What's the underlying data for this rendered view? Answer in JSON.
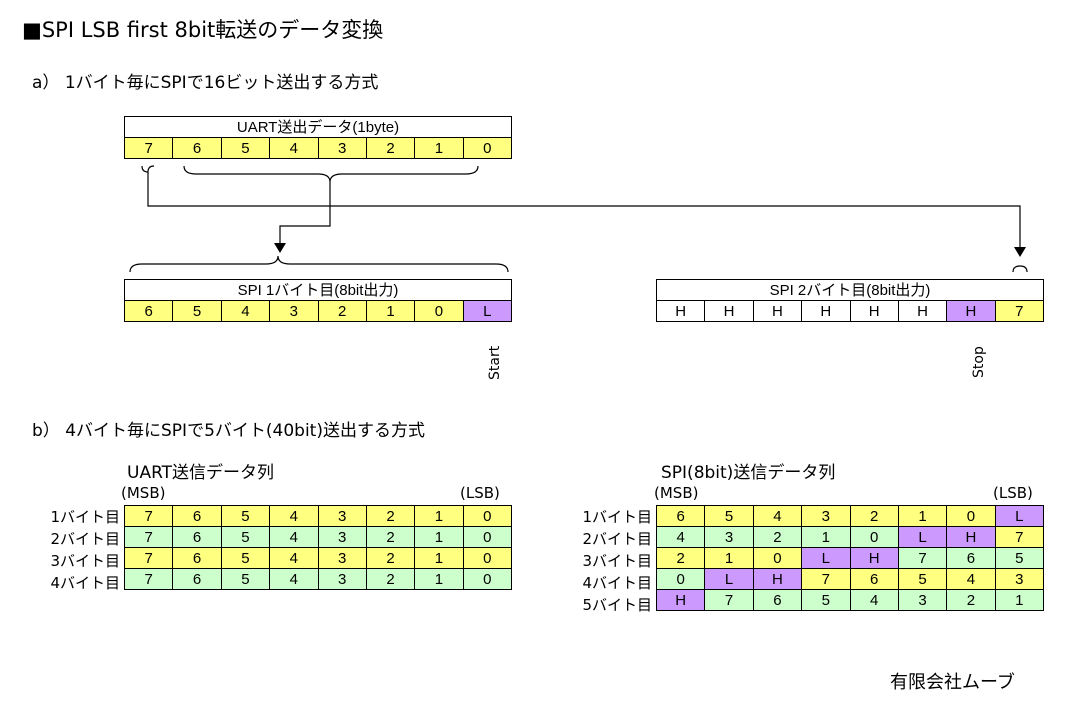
{
  "title": "■SPI LSB first 8bit転送のデータ変換",
  "section_a": {
    "heading": "a）  1バイト毎にSPIで16ビット送出する方式",
    "uart_caption": "UART送出データ(1byte)",
    "uart_cells": [
      "7",
      "6",
      "5",
      "4",
      "3",
      "2",
      "1",
      "0"
    ],
    "spi1_caption": "SPI 1バイト目(8bit出力)",
    "spi1_cells": [
      "6",
      "5",
      "4",
      "3",
      "2",
      "1",
      "0",
      "L"
    ],
    "spi2_caption": "SPI 2バイト目(8bit出力)",
    "spi2_cells": [
      "H",
      "H",
      "H",
      "H",
      "H",
      "H",
      "H",
      "7"
    ],
    "start_label": "Start",
    "stop_label": "Stop"
  },
  "section_b": {
    "heading": "b）  4バイト毎にSPIで5バイト(40bit)送出する方式",
    "uart_title": "UART送信データ列",
    "spi_title": "SPI(8bit)送信データ列",
    "msb": "(MSB)",
    "lsb": "(LSB)",
    "uart_row_labels": [
      "1バイト目",
      "2バイト目",
      "3バイト目",
      "4バイト目"
    ],
    "uart_rows": [
      [
        "7",
        "6",
        "5",
        "4",
        "3",
        "2",
        "1",
        "0"
      ],
      [
        "7",
        "6",
        "5",
        "4",
        "3",
        "2",
        "1",
        "0"
      ],
      [
        "7",
        "6",
        "5",
        "4",
        "3",
        "2",
        "1",
        "0"
      ],
      [
        "7",
        "6",
        "5",
        "4",
        "3",
        "2",
        "1",
        "0"
      ]
    ],
    "spi_row_labels": [
      "1バイト目",
      "2バイト目",
      "3バイト目",
      "4バイト目",
      "5バイト目"
    ],
    "spi_rows": [
      [
        "6",
        "5",
        "4",
        "3",
        "2",
        "1",
        "0",
        "L"
      ],
      [
        "4",
        "3",
        "2",
        "1",
        "0",
        "L",
        "H",
        "7"
      ],
      [
        "2",
        "1",
        "0",
        "L",
        "H",
        "7",
        "6",
        "5"
      ],
      [
        "0",
        "L",
        "H",
        "7",
        "6",
        "5",
        "4",
        "3"
      ],
      [
        "H",
        "7",
        "6",
        "5",
        "4",
        "3",
        "2",
        "1"
      ]
    ]
  },
  "company": "有限会社ムーブ",
  "colors": {
    "yellow": "#ffff80",
    "green": "#ccffcc",
    "purple": "#cc99ff"
  }
}
